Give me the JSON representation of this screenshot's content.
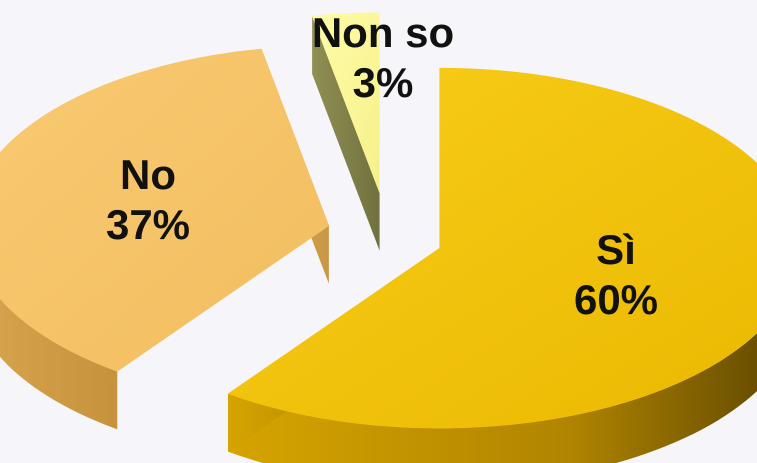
{
  "chart_data": {
    "type": "pie",
    "title": "",
    "style": "3d-exploded",
    "categories": [
      "Sì",
      "No",
      "Non so"
    ],
    "values": [
      60,
      37,
      3
    ],
    "labels": [
      {
        "name": "Sì",
        "percent": "60%"
      },
      {
        "name": "No",
        "percent": "37%"
      },
      {
        "name": "Non so",
        "percent": "3%"
      }
    ],
    "colors": [
      "#f6c300",
      "#f6c268",
      "#fdfa9a"
    ],
    "legend": "none"
  }
}
